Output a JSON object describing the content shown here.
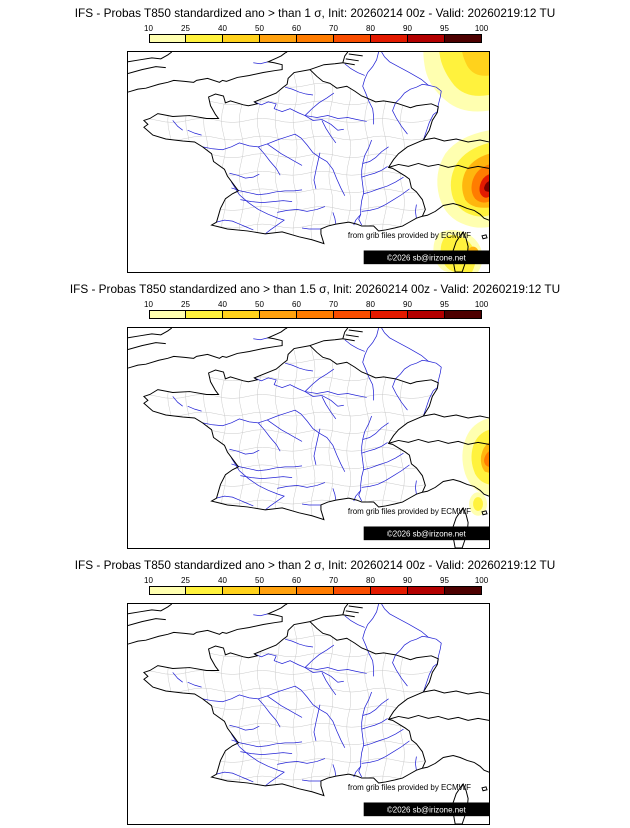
{
  "panels": [
    {
      "title": "IFS - Probas T850  standardized ano > than 1 σ, Init: 20260214 00z - Valid: 20260219:12 TU",
      "sigma_threshold": "1",
      "attribution": "from grib files provided by ECMWF",
      "copyright": "©2026 sb@irizone.net",
      "observed_max_probability": "≈90-95% over Ligurian coast / NW Italy, 25-60% NE corner and around Corsica"
    },
    {
      "title": "IFS - Probas T850  standardized ano > than 1.5 σ, Init: 20260214 00z - Valid: 20260219:12 TU",
      "sigma_threshold": "1.5",
      "attribution": "from grib files provided by ECMWF",
      "copyright": "©2026 sb@irizone.net",
      "observed_max_probability": "≈50-60% in small areas along Ligurian coast and east of Corsica"
    },
    {
      "title": "IFS - Probas T850  standardized ano > than 2 σ, Init: 20260214 00z - Valid: 20260219:12 TU",
      "sigma_threshold": "2",
      "attribution": "from grib files provided by ECMWF",
      "copyright": "©2026 sb@irizone.net",
      "observed_max_probability": "no areas ≥ 10%"
    }
  ],
  "colorbar": {
    "unit": "%",
    "ticks": [
      "10",
      "25",
      "40",
      "50",
      "60",
      "70",
      "80",
      "90",
      "95",
      "100"
    ],
    "colors": [
      "#ffffb0",
      "#fff23d",
      "#ffd21c",
      "#ffa10e",
      "#ff7c00",
      "#f94d00",
      "#e31a00",
      "#b30000",
      "#4d0000"
    ]
  },
  "map": {
    "region": "France and surrounding area (Channel to Ligurian Sea, Corsica)",
    "river_color": "#2424d6",
    "coast_color": "#000000",
    "department_boundary_color": "#c8c8c8"
  },
  "chart_data": [
    {
      "type": "heatmap",
      "title": "Probability T850 standardized anomaly > 1 σ",
      "init": "20260214 00z",
      "valid": "20260219:12 TU",
      "scale_percent": [
        10,
        25,
        40,
        50,
        60,
        70,
        80,
        90,
        95,
        100
      ],
      "observed": "large maximum 90-95% over Ligurian coast/NW Italy; 25-60% in NE map corner and around Corsica"
    },
    {
      "type": "heatmap",
      "title": "Probability T850 standardized anomaly > 1.5 σ",
      "init": "20260214 00z",
      "valid": "20260219:12 TU",
      "scale_percent": [
        10,
        25,
        40,
        50,
        60,
        70,
        80,
        90,
        95,
        100
      ],
      "observed": "small 10-60% patches along Ligurian coast and east of Corsica"
    },
    {
      "type": "heatmap",
      "title": "Probability T850 standardized anomaly > 2 σ",
      "init": "20260214 00z",
      "valid": "20260219:12 TU",
      "scale_percent": [
        10,
        25,
        40,
        50,
        60,
        70,
        80,
        90,
        95,
        100
      ],
      "observed": "no shaded areas (all < 10%)"
    }
  ]
}
